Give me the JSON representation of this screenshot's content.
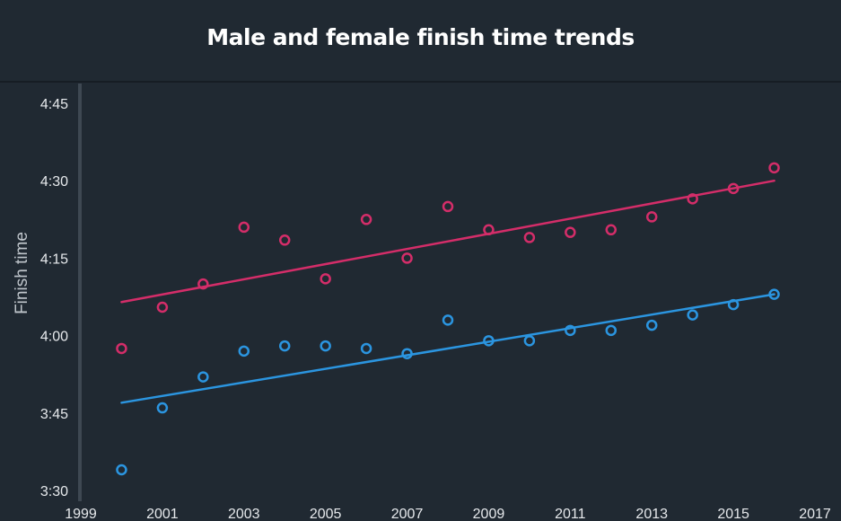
{
  "chart_data": {
    "type": "scatter",
    "title": "Male and female finish time trends",
    "xlabel": "",
    "ylabel": "Finish time",
    "xlim": [
      1999,
      2017
    ],
    "ylim": [
      210,
      285
    ],
    "x_ticks": [
      1999,
      2001,
      2003,
      2005,
      2007,
      2009,
      2011,
      2013,
      2015,
      2017
    ],
    "x_tick_labels": [
      "1999",
      "2001",
      "2003",
      "2005",
      "2007",
      "2009",
      "2011",
      "2013",
      "2015",
      "2017"
    ],
    "y_ticks": [
      210,
      225,
      240,
      255,
      270,
      285
    ],
    "y_tick_labels": [
      "3:30",
      "3:45",
      "4:00",
      "4:15",
      "4:30",
      "4:45"
    ],
    "y_unit": "minutes",
    "grid": false,
    "legend": "none",
    "series": [
      {
        "color": "#d42d69",
        "x": [
          2000,
          2001,
          2002,
          2003,
          2004,
          2005,
          2006,
          2007,
          2008,
          2009,
          2010,
          2011,
          2012,
          2013,
          2014,
          2015,
          2016
        ],
        "y": [
          237.5,
          245.5,
          250.0,
          261.0,
          258.5,
          251.0,
          262.5,
          255.0,
          265.0,
          260.5,
          259.0,
          260.0,
          260.5,
          263.0,
          266.5,
          268.5,
          272.5
        ],
        "trend": {
          "x": [
            2000,
            2016
          ],
          "y": [
            246.5,
            270.0
          ]
        }
      },
      {
        "color": "#2b95e0",
        "x": [
          2000,
          2001,
          2002,
          2003,
          2004,
          2005,
          2006,
          2007,
          2008,
          2009,
          2010,
          2011,
          2012,
          2013,
          2014,
          2015,
          2016
        ],
        "y": [
          214.0,
          226.0,
          232.0,
          237.0,
          238.0,
          238.0,
          237.5,
          236.5,
          243.0,
          239.0,
          239.0,
          241.0,
          241.0,
          242.0,
          244.0,
          246.0,
          248.0
        ],
        "trend": {
          "x": [
            2000,
            2016
          ],
          "y": [
            227.0,
            248.0
          ]
        }
      }
    ]
  }
}
